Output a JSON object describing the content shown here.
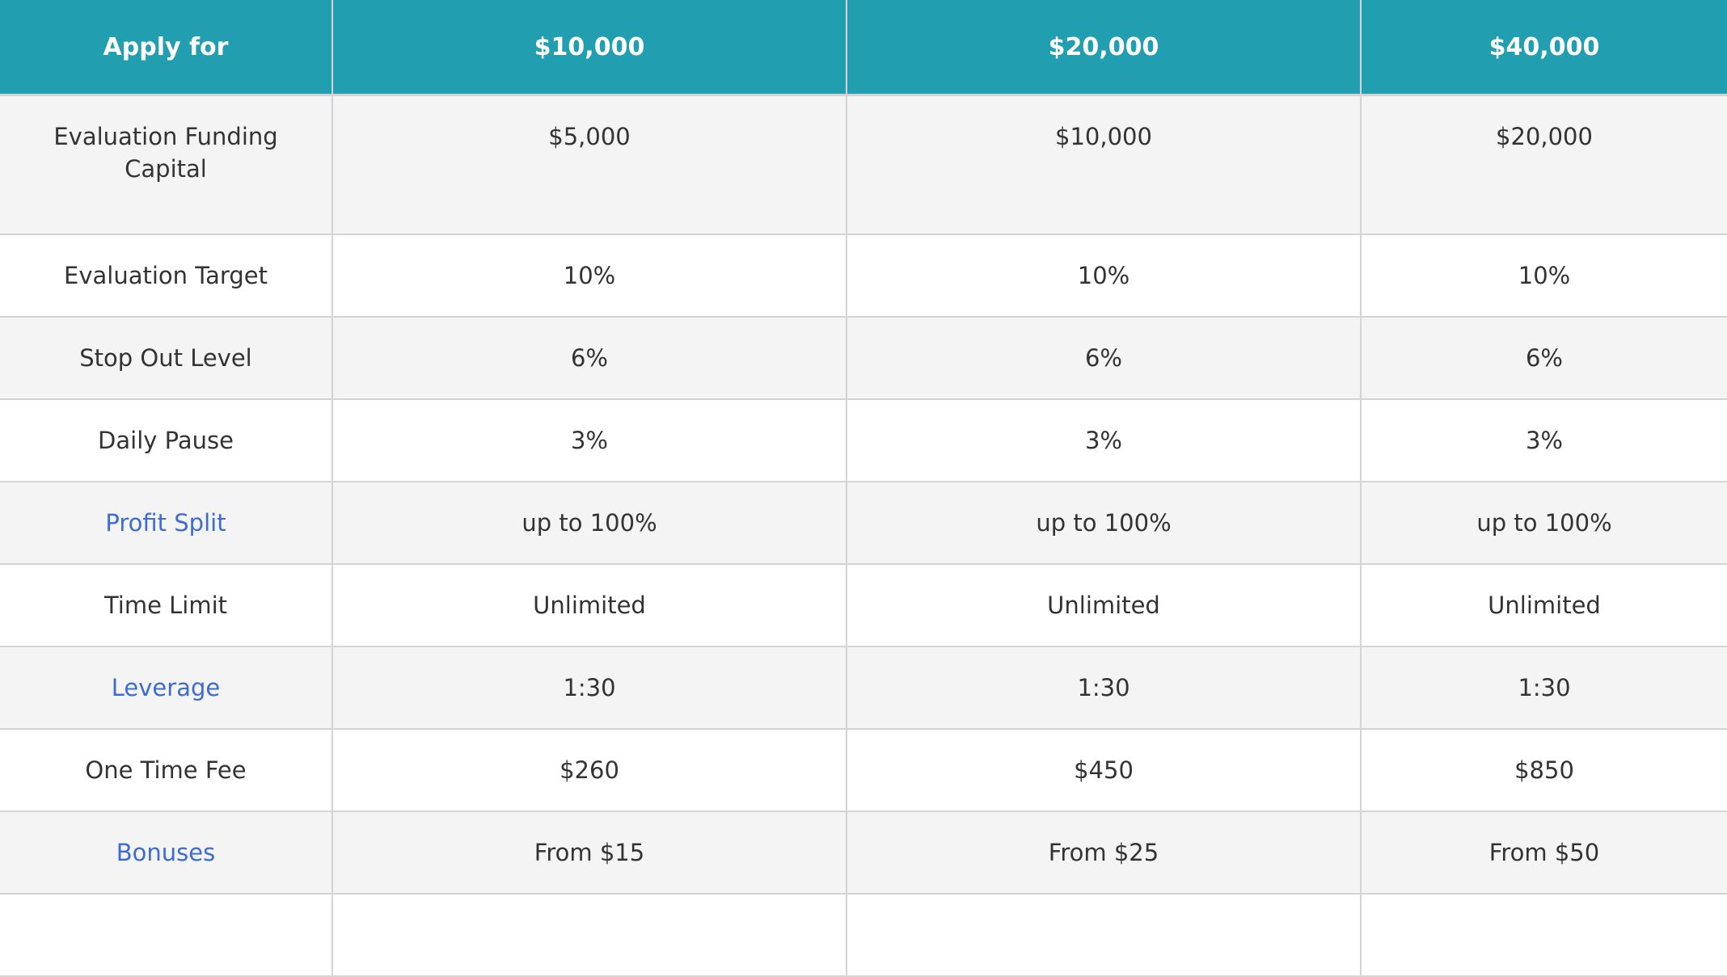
{
  "colors": {
    "header_bg": "#219eb0",
    "alt_row": "#f4f4f4",
    "link": "#3d6bd6"
  },
  "header": [
    "Apply for",
    "$10,000",
    "$20,000",
    "$40,000"
  ],
  "rows": [
    {
      "label": "Evaluation Funding Capital",
      "link": false,
      "values": [
        "$5,000",
        "$10,000",
        "$20,000"
      ]
    },
    {
      "label": "Evaluation Target",
      "link": false,
      "values": [
        "10%",
        "10%",
        "10%"
      ]
    },
    {
      "label": "Stop Out Level",
      "link": false,
      "values": [
        "6%",
        "6%",
        "6%"
      ]
    },
    {
      "label": "Daily Pause",
      "link": false,
      "values": [
        "3%",
        "3%",
        "3%"
      ]
    },
    {
      "label": "Profit Split",
      "link": true,
      "values": [
        "up to 100%",
        "up to 100%",
        "up to 100%"
      ]
    },
    {
      "label": "Time Limit",
      "link": false,
      "values": [
        "Unlimited",
        "Unlimited",
        "Unlimited"
      ]
    },
    {
      "label": "Leverage",
      "link": true,
      "values": [
        "1:30",
        "1:30",
        "1:30"
      ]
    },
    {
      "label": "One Time Fee",
      "link": false,
      "values": [
        "$260",
        "$450",
        "$850"
      ]
    },
    {
      "label": "Bonuses",
      "link": true,
      "values": [
        "From $15",
        "From $25",
        "From $50"
      ]
    }
  ]
}
